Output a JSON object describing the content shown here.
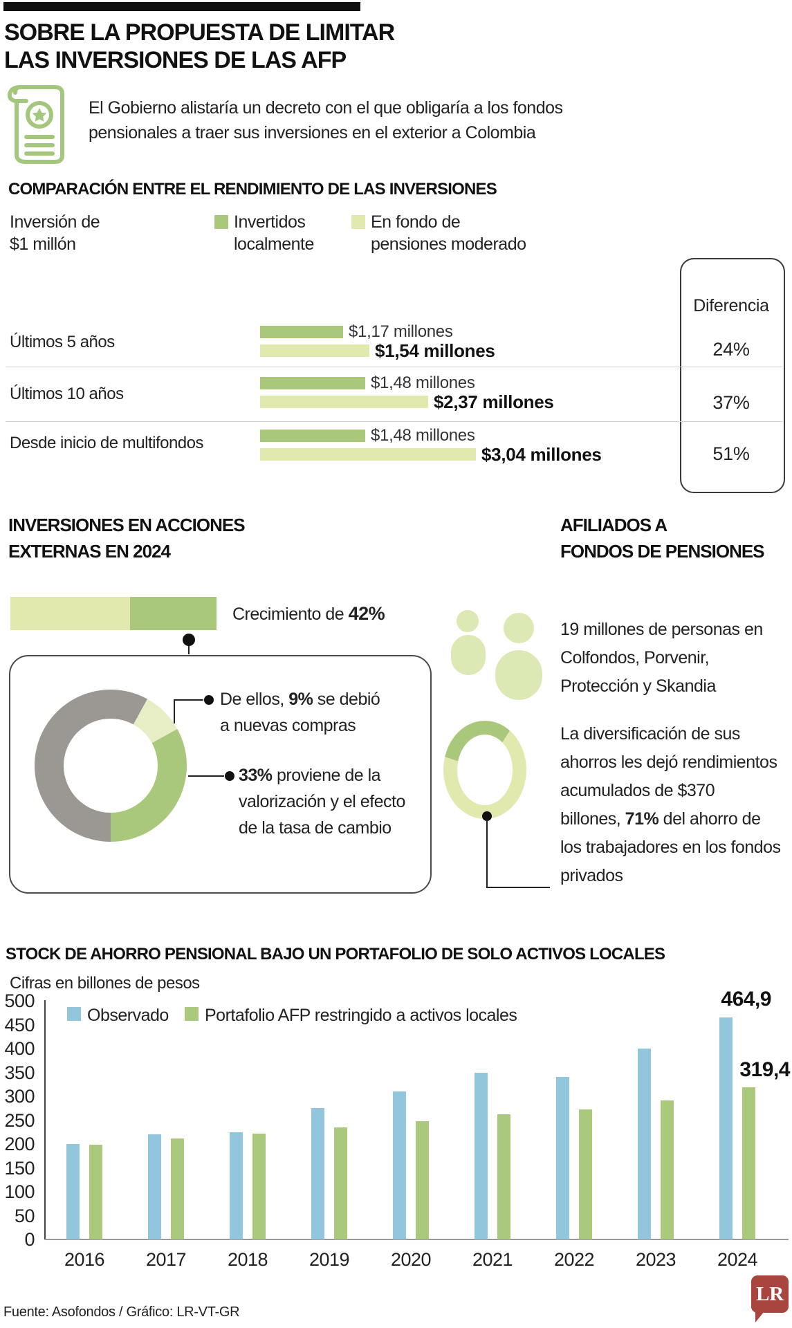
{
  "colors": {
    "dark_green": "#a9c87c",
    "pale_green": "#e1e9af",
    "pale_green2": "#e7eec6",
    "icon_green": "#dce9b4",
    "gray": "#9b9894",
    "blue": "#92c6dd",
    "bar_green": "#abc97d",
    "lr_red": "#a9453f",
    "accent_black": "#101010"
  },
  "header": {
    "title_line1": "SOBRE LA PROPUESTA DE LIMITAR",
    "title_line2": "LAS INVERSIONES DE LAS AFP"
  },
  "intro": {
    "line1": "El Gobierno alistaría un decreto con el que obligaría a los fondos",
    "line2": "pensionales a traer sus inversiones en el exterior a Colombia"
  },
  "comparison": {
    "heading": "COMPARACIÓN ENTRE EL RENDIMIENTO DE LAS INVERSIONES",
    "base_line1": "Inversión de",
    "base_line2": "$1 millón",
    "legend_local_line1": "Invertidos",
    "legend_local_line2": "localmente",
    "legend_mod_line1": "En fondo de",
    "legend_mod_line2": "pensiones moderado",
    "diferencia_header": "Diferencia"
  },
  "acciones": {
    "heading_line1": "INVERSIONES EN ACCIONES",
    "heading_line2": "EXTERNAS EN 2024",
    "growth_pre": "Crecimiento de ",
    "growth_bold": "42%",
    "callout1_pre": "De ellos, ",
    "callout1_bold": "9%",
    "callout1_post": " se debió",
    "callout1_line2": "a nuevas compras",
    "callout2_bold": "33%",
    "callout2_post": " proviene de la",
    "callout2_line2": "valorización y el efecto",
    "callout2_line3": "de la tasa de cambio"
  },
  "afiliados": {
    "heading_line1": "AFILIADOS A",
    "heading_line2": "FONDOS DE PENSIONES",
    "text1_line1": "19 millones de personas en",
    "text1_line2": "Colfondos, Porvenir,",
    "text1_line3": "Protección y Skandia",
    "text2_line1": "La diversificación de sus",
    "text2_line2": "ahorros les dejó rendimientos",
    "text2_line3": "acumulados de $370",
    "text2_line4_pre": "billones, ",
    "text2_line4_bold": "71%",
    "text2_line4_post": " del ahorro de",
    "text2_line5": "los trabajadores en los fondos",
    "text2_line6": "privados"
  },
  "stock": {
    "heading": "STOCK DE AHORRO PENSIONAL BAJO UN PORTAFOLIO DE SOLO ACTIVOS LOCALES",
    "subtitle": "Cifras en billones de pesos"
  },
  "footer": {
    "source": "Fuente: Asofondos / Gráfico: LR-VT-GR",
    "logo": "LR"
  },
  "chart_data": [
    {
      "type": "bar",
      "orientation": "horizontal",
      "title": "COMPARACIÓN ENTRE EL RENDIMIENTO DE LAS INVERSIONES",
      "unit": "millones de pesos, partiendo de inversión de $1 millón",
      "series": [
        "Invertidos localmente",
        "En fondo de pensiones moderado"
      ],
      "rows": [
        {
          "label": "Últimos 5 años",
          "local": 1.17,
          "moderado": 1.54,
          "local_display": "$1,17 millones",
          "moderado_display": "$1,54 millones",
          "diferencia": "24%"
        },
        {
          "label": "Últimos 10 años",
          "local": 1.48,
          "moderado": 2.37,
          "local_display": "$1,48 millones",
          "moderado_display": "$2,37 millones",
          "diferencia": "37%"
        },
        {
          "label": "Desde inicio de multifondos",
          "local": 1.48,
          "moderado": 3.04,
          "local_display": "$1,48 millones",
          "moderado_display": "$3,04 millones",
          "diferencia": "51%"
        }
      ]
    },
    {
      "type": "pie",
      "title": "INVERSIONES EN ACCIONES EXTERNAS EN 2024",
      "growth": "42%",
      "donut_segments": [
        {
          "name": "resto",
          "value": 8,
          "color": "gray"
        },
        {
          "name": "nuevas compras",
          "value": 9,
          "color": "pale_green2"
        },
        {
          "name": "valorización y efecto de la tasa de cambio",
          "value": 33,
          "color": "dark_green"
        },
        {
          "name": "resto",
          "value": 50,
          "color": "gray"
        }
      ],
      "stacked_bar": [
        {
          "value": 58,
          "color": "pale_green"
        },
        {
          "value": 42,
          "color": "dark_green"
        }
      ]
    },
    {
      "type": "pie",
      "title": "AFILIADOS A FONDOS DE PENSIONES",
      "highlight": "71%",
      "donut_segments": [
        {
          "name": "fondos privados",
          "value": 9,
          "color": "dark_green"
        },
        {
          "name": "ahorro de los trabajadores",
          "value": 71,
          "color": "pale_green"
        },
        {
          "name": "fondos privados",
          "value": 20,
          "color": "dark_green"
        }
      ]
    },
    {
      "type": "bar",
      "title": "STOCK DE AHORRO PENSIONAL BAJO UN PORTAFOLIO DE SOLO ACTIVOS LOCALES",
      "ylabel": "billones de pesos",
      "ylim": [
        0,
        500
      ],
      "yticks": [
        0,
        50,
        100,
        150,
        200,
        250,
        300,
        350,
        400,
        450,
        500
      ],
      "categories": [
        "2016",
        "2017",
        "2018",
        "2019",
        "2020",
        "2021",
        "2022",
        "2023",
        "2024"
      ],
      "series": [
        {
          "name": "Observado",
          "color": "blue",
          "values": [
            200,
            220,
            224,
            275,
            310,
            350,
            340,
            400,
            464.9
          ]
        },
        {
          "name": "Portafolio AFP restringido a activos locales",
          "color": "bar_green",
          "values": [
            198,
            212,
            222,
            235,
            248,
            262,
            273,
            292,
            319.4
          ]
        }
      ],
      "end_labels": [
        "464,9",
        "319,4"
      ],
      "legend_position": "top"
    }
  ]
}
